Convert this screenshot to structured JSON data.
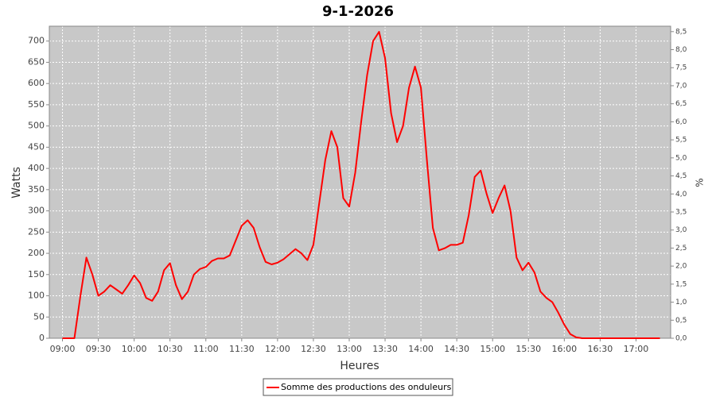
{
  "chart_data": {
    "type": "line",
    "title": "9-1-2026",
    "xlabel": "Heures",
    "ylabel": "Watts",
    "y2label": "%",
    "x": [
      "09:00",
      "09:05",
      "09:10",
      "09:15",
      "09:20",
      "09:25",
      "09:30",
      "09:35",
      "09:40",
      "09:45",
      "09:50",
      "09:55",
      "10:00",
      "10:05",
      "10:10",
      "10:15",
      "10:20",
      "10:25",
      "10:30",
      "10:35",
      "10:40",
      "10:45",
      "10:50",
      "10:55",
      "11:00",
      "11:05",
      "11:10",
      "11:15",
      "11:20",
      "11:25",
      "11:30",
      "11:35",
      "11:40",
      "11:45",
      "11:50",
      "11:55",
      "12:00",
      "12:05",
      "12:10",
      "12:15",
      "12:20",
      "12:25",
      "12:30",
      "12:35",
      "12:40",
      "12:45",
      "12:50",
      "12:55",
      "13:00",
      "13:05",
      "13:10",
      "13:15",
      "13:20",
      "13:25",
      "13:30",
      "13:35",
      "13:40",
      "13:45",
      "13:50",
      "13:55",
      "14:00",
      "14:05",
      "14:10",
      "14:15",
      "14:20",
      "14:25",
      "14:30",
      "14:35",
      "14:40",
      "14:45",
      "14:50",
      "14:55",
      "15:00",
      "15:05",
      "15:10",
      "15:15",
      "15:20",
      "15:25",
      "15:30",
      "15:35",
      "15:40",
      "15:45",
      "15:50",
      "15:55",
      "16:00",
      "16:05",
      "16:10",
      "16:15",
      "17:20"
    ],
    "series": [
      {
        "name": "Somme des productions des onduleurs",
        "color": "#ff0000",
        "values": [
          0,
          0,
          0,
          100,
          190,
          150,
          100,
          110,
          125,
          115,
          105,
          125,
          148,
          130,
          95,
          88,
          110,
          160,
          177,
          125,
          92,
          110,
          150,
          163,
          168,
          182,
          188,
          188,
          195,
          230,
          265,
          278,
          260,
          215,
          180,
          174,
          178,
          186,
          198,
          210,
          200,
          184,
          220,
          320,
          420,
          488,
          450,
          330,
          310,
          390,
          510,
          620,
          700,
          722,
          660,
          530,
          462,
          500,
          590,
          640,
          590,
          420,
          260,
          207,
          212,
          220,
          220,
          225,
          290,
          380,
          395,
          340,
          295,
          330,
          360,
          300,
          190,
          160,
          178,
          155,
          110,
          95,
          85,
          60,
          32,
          10,
          2,
          0,
          0
        ]
      }
    ],
    "xlim": [
      "08:49",
      "17:29"
    ],
    "xticks": [
      "09:00",
      "09:30",
      "10:00",
      "10:30",
      "11:00",
      "11:30",
      "12:00",
      "12:30",
      "13:00",
      "13:30",
      "14:00",
      "14:30",
      "15:00",
      "15:30",
      "16:00",
      "16:30",
      "17:00"
    ],
    "ylim": [
      0,
      735
    ],
    "yticks": [
      0,
      50,
      100,
      150,
      200,
      250,
      300,
      350,
      400,
      450,
      500,
      550,
      600,
      650,
      700
    ],
    "y2lim": [
      0,
      8.65
    ],
    "y2ticks": [
      {
        "value": 0,
        "label": "0,0"
      },
      {
        "value": 0.5,
        "label": "0,5"
      },
      {
        "value": 1,
        "label": "1,0"
      },
      {
        "value": 1.5,
        "label": "1,5"
      },
      {
        "value": 2,
        "label": "2,0"
      },
      {
        "value": 2.5,
        "label": "2,5"
      },
      {
        "value": 3,
        "label": "3,0"
      },
      {
        "value": 3.5,
        "label": "3,5"
      },
      {
        "value": 4,
        "label": "4,0"
      },
      {
        "value": 4.5,
        "label": "4,5"
      },
      {
        "value": 5,
        "label": "5,0"
      },
      {
        "value": 5.5,
        "label": "5,5"
      },
      {
        "value": 6,
        "label": "6,0"
      },
      {
        "value": 6.5,
        "label": "6,5"
      },
      {
        "value": 7,
        "label": "7,0"
      },
      {
        "value": 7.5,
        "label": "7,5"
      },
      {
        "value": 8,
        "label": "8,0"
      },
      {
        "value": 8.5,
        "label": "8,5"
      }
    ],
    "grid": true,
    "legend": "bottom"
  }
}
